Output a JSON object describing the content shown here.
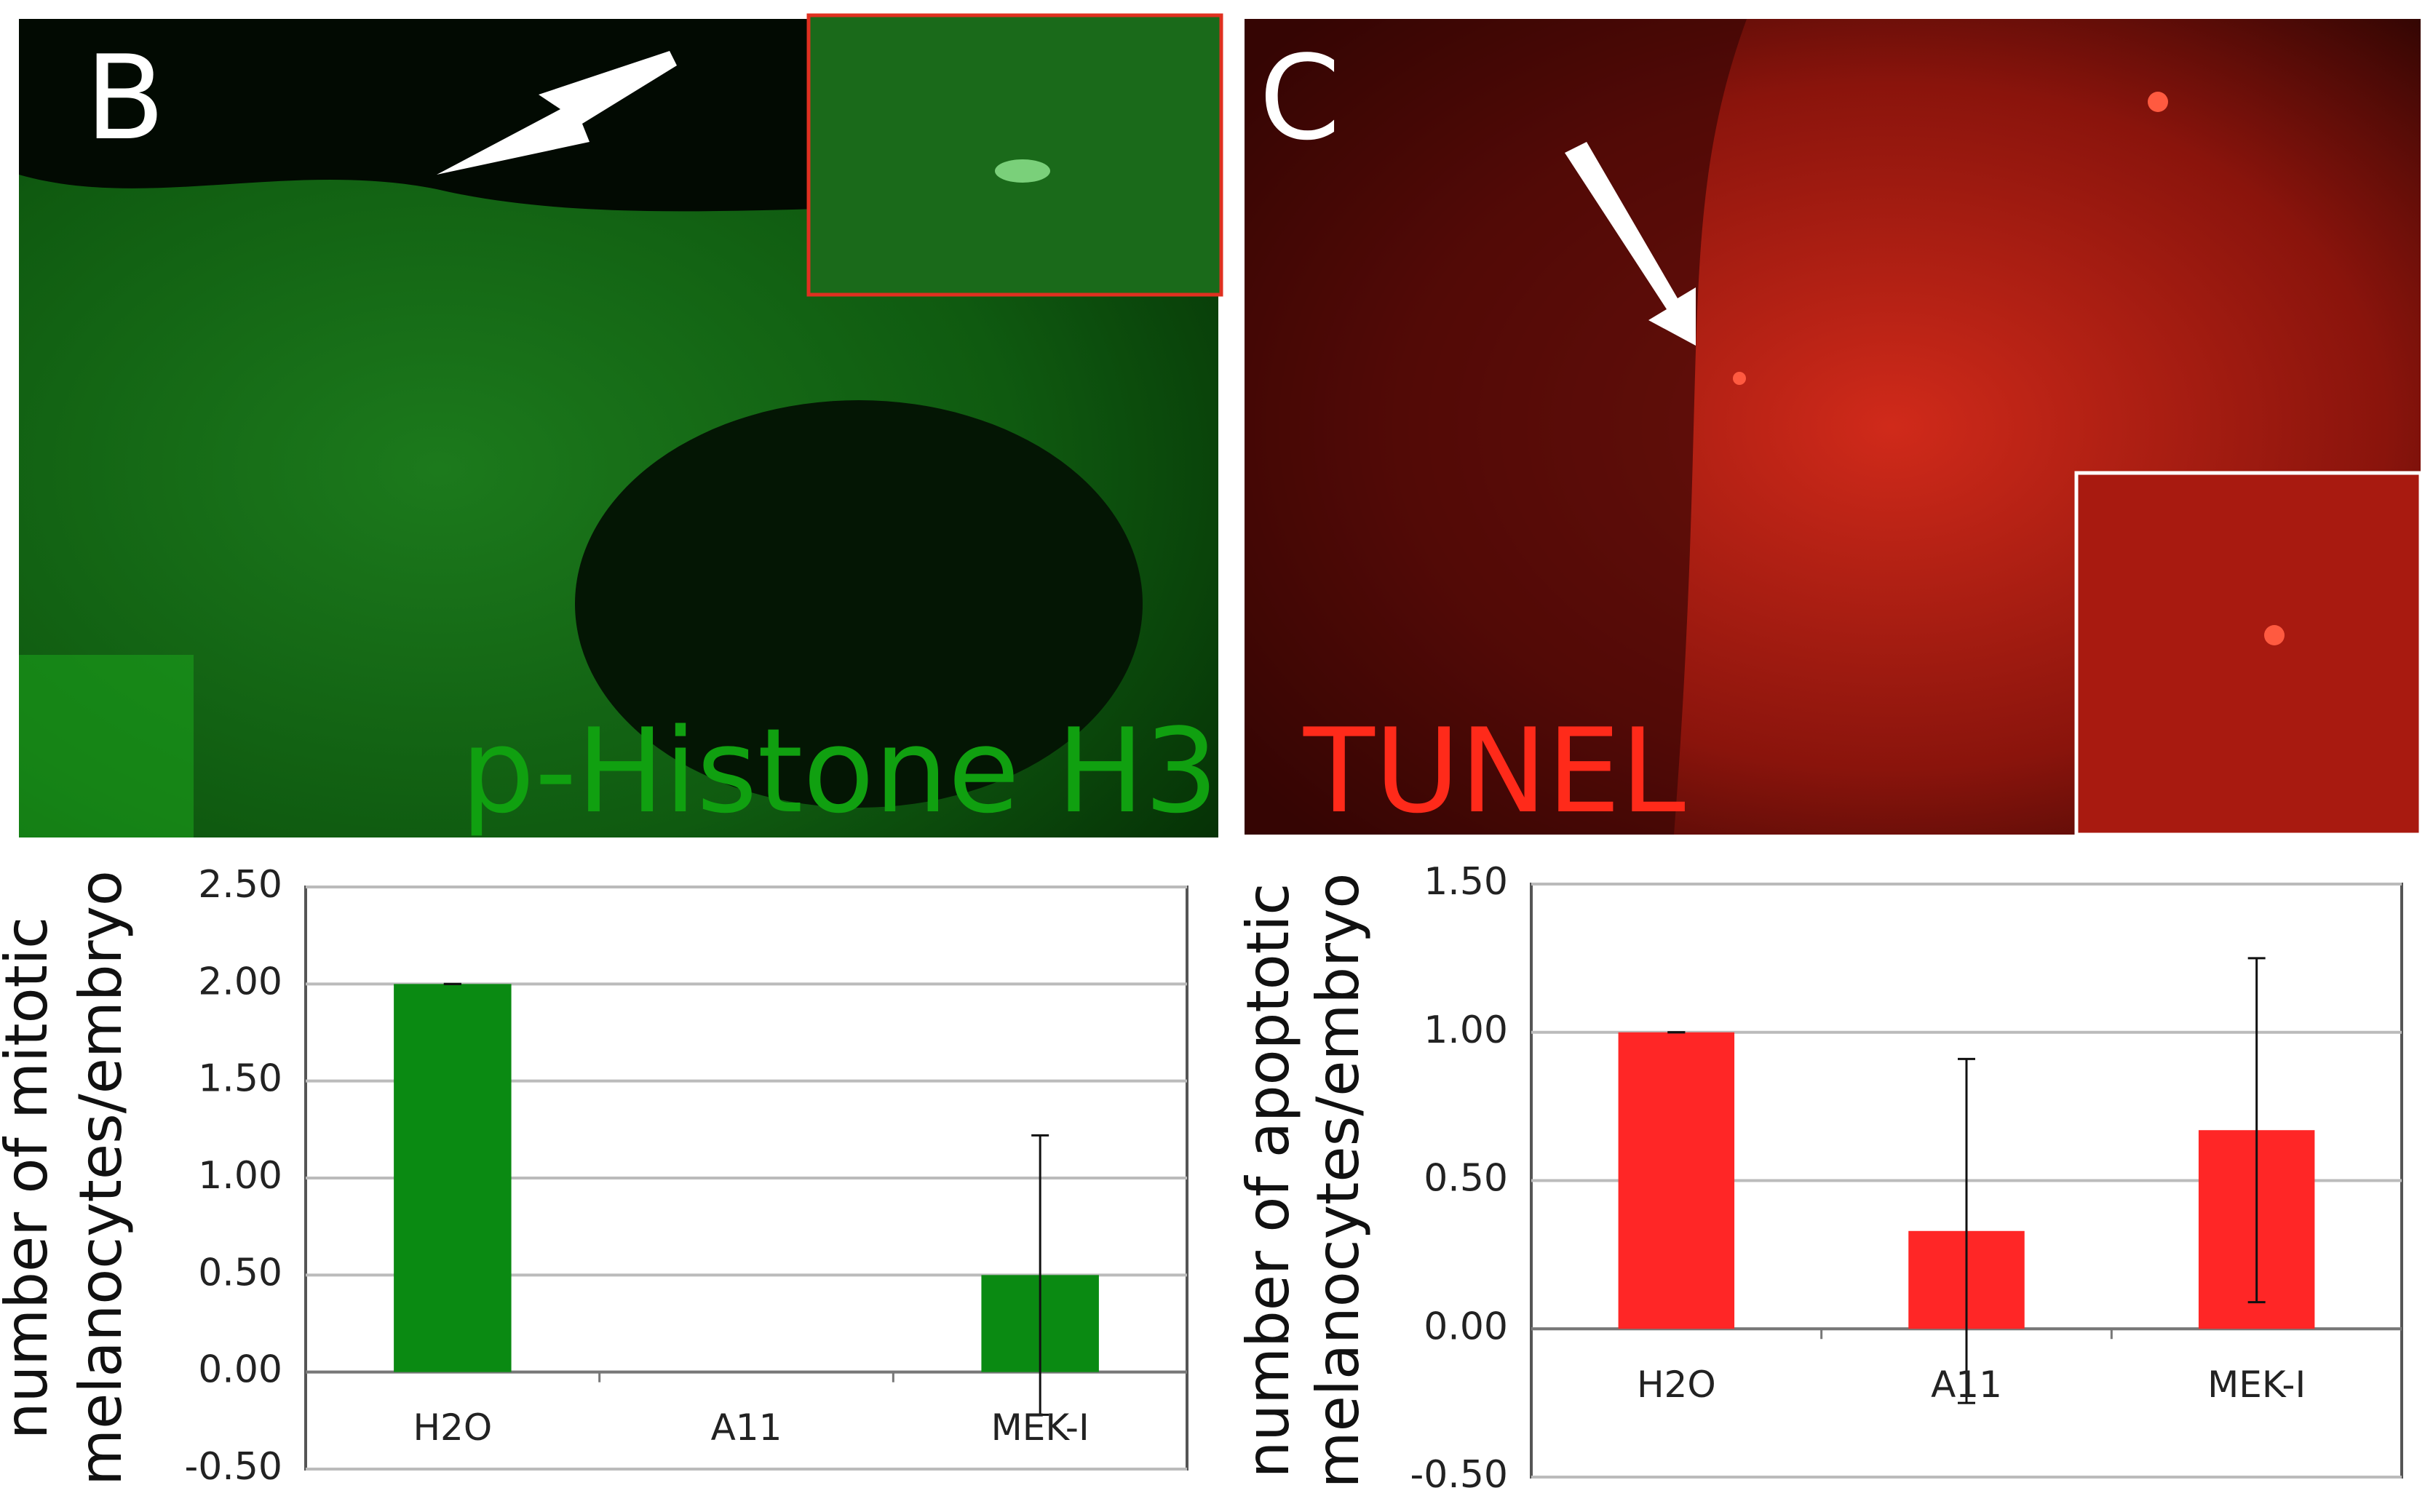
{
  "panels": [
    {
      "letter": "B",
      "label": "p-Histone H3"
    },
    {
      "letter": "C",
      "label": "TUNEL"
    }
  ],
  "chart_data": [
    {
      "type": "bar",
      "ylabel": [
        "number of mitotic",
        "melanocytes/embryo"
      ],
      "categories": [
        "H2O",
        "A11",
        "MEK-I"
      ],
      "values": [
        2.0,
        0,
        0.5
      ],
      "errors": [
        0,
        null,
        0.72
      ],
      "color": "#0a8a12",
      "ylim": [
        -0.5,
        2.5
      ],
      "yticks": [
        {
          "value": 2.5,
          "label": "2.50"
        },
        {
          "value": 2.0,
          "label": "2.00"
        },
        {
          "value": 1.5,
          "label": "1.50"
        },
        {
          "value": 1.0,
          "label": "1.00"
        },
        {
          "value": 0.5,
          "label": "0.50"
        },
        {
          "value": 0,
          "label": "0.00"
        },
        {
          "value": -0.5,
          "label": "-0.50"
        }
      ],
      "grid": true
    },
    {
      "type": "bar",
      "ylabel": [
        "number of apoptotic",
        "melanocytes/embryo"
      ],
      "categories": [
        "H2O",
        "A11",
        "MEK-I"
      ],
      "values": [
        1.0,
        0.33,
        0.67
      ],
      "errors": [
        0,
        0.58,
        0.58
      ],
      "color": "#ff2626",
      "ylim": [
        -0.5,
        1.5
      ],
      "yticks": [
        {
          "value": 1.5,
          "label": "1.50"
        },
        {
          "value": 1.0,
          "label": "1.00"
        },
        {
          "value": 0.5,
          "label": "0.50"
        },
        {
          "value": 0,
          "label": "0.00"
        },
        {
          "value": -0.5,
          "label": "-0.50"
        }
      ],
      "grid": true
    }
  ]
}
